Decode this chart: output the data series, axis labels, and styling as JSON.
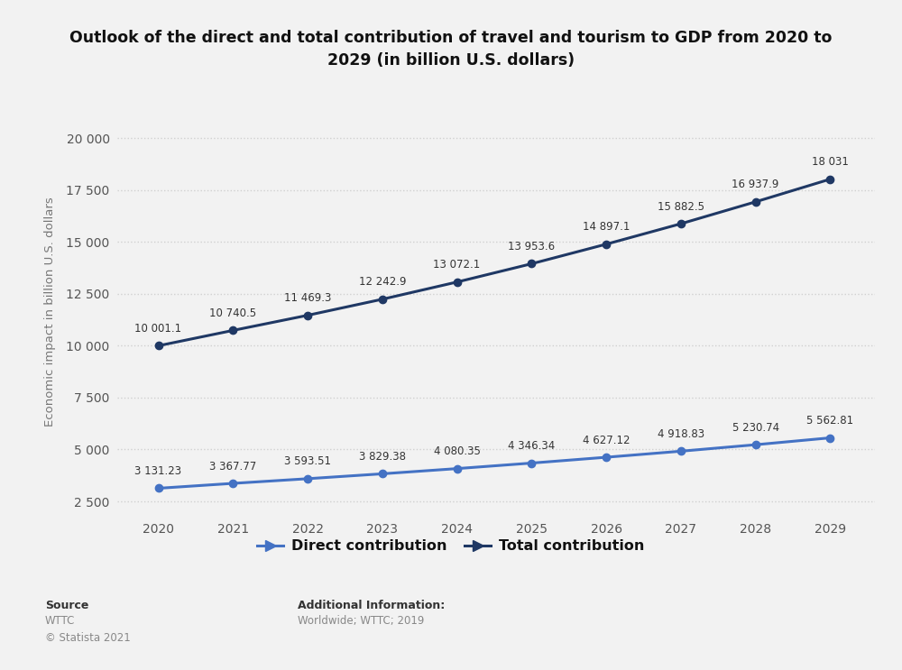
{
  "title": "Outlook of the direct and total contribution of travel and tourism to GDP from 2020 to\n2029 (in billion U.S. dollars)",
  "ylabel": "Economic impact in billion U.S. dollars",
  "years": [
    2020,
    2021,
    2022,
    2023,
    2024,
    2025,
    2026,
    2027,
    2028,
    2029
  ],
  "direct": [
    3131.23,
    3367.77,
    3593.51,
    3829.38,
    4080.35,
    4346.34,
    4627.12,
    4918.83,
    5230.74,
    5562.81
  ],
  "total": [
    10001.1,
    10740.5,
    11469.3,
    12242.9,
    13072.1,
    13953.6,
    14897.1,
    15882.5,
    16937.9,
    18031
  ],
  "direct_labels": [
    "3 131.23",
    "3 367.77",
    "3 593.51",
    "3 829.38",
    "4 080.35",
    "4 346.34",
    "4 627.12",
    "4 918.83",
    "5 230.74",
    "5 562.81"
  ],
  "total_labels": [
    "10 001.1",
    "10 740.5",
    "11 469.3",
    "12 242.9",
    "13 072.1",
    "13 953.6",
    "14 897.1",
    "15 882.5",
    "16 937.9",
    "18 031"
  ],
  "direct_color": "#4472C4",
  "total_color": "#1F3864",
  "bg_color": "#f2f2f2",
  "plot_bg_color": "#f2f2f2",
  "grid_color": "#d0d0d0",
  "yticks": [
    2500,
    5000,
    7500,
    10000,
    12500,
    15000,
    17500,
    20000
  ],
  "ylim": [
    1800,
    21500
  ],
  "source_label": "Source",
  "source_body": "WTTC\n© Statista 2021",
  "additional_label": "Additional Information:",
  "additional_body": "Worldwide; WTTC; 2019",
  "legend_direct": "Direct contribution",
  "legend_total": "Total contribution"
}
